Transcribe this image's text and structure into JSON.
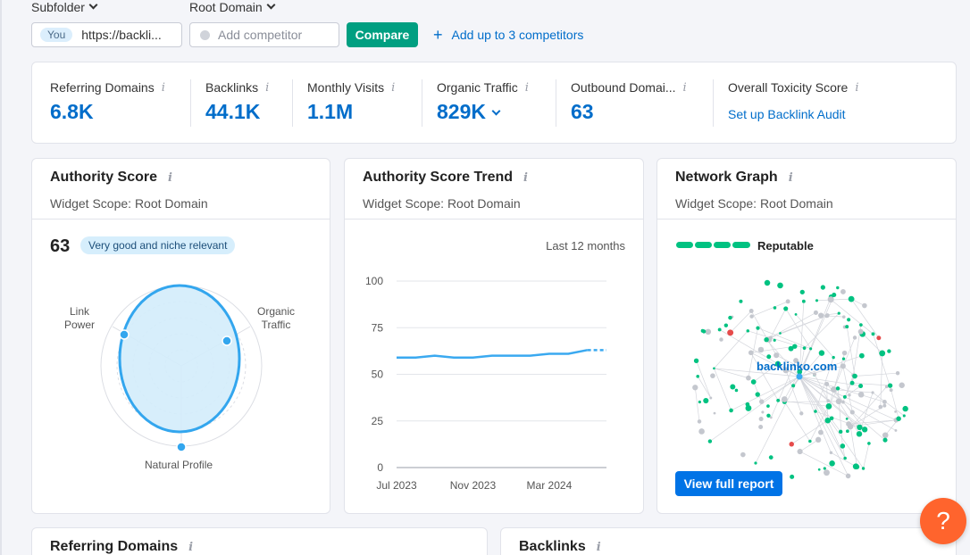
{
  "filters": {
    "subfolder_label": "Subfolder",
    "root_domain_label": "Root Domain",
    "you_badge": "You",
    "url_value": "https://backli...",
    "competitor_placeholder": "Add competitor",
    "compare_label": "Compare",
    "add_competitors_label": "Add up to 3 competitors"
  },
  "metrics": [
    {
      "label": "Referring Domains",
      "value": "6.8K"
    },
    {
      "label": "Backlinks",
      "value": "44.1K"
    },
    {
      "label": "Monthly Visits",
      "value": "1.1M"
    },
    {
      "label": "Organic Traffic",
      "value": "829K"
    },
    {
      "label": "Outbound Domai...",
      "value": "63"
    },
    {
      "label": "Overall Toxicity Score",
      "link": "Set up Backlink Audit"
    }
  ],
  "authority_score": {
    "title": "Authority Score",
    "scope": "Widget Scope: Root Domain",
    "score": "63",
    "badge": "Very good and niche relevant",
    "axis_labels": {
      "link_power": [
        "Link",
        "Power"
      ],
      "organic_traffic": [
        "Organic",
        "Traffic"
      ],
      "natural_profile": "Natural Profile"
    }
  },
  "trend": {
    "title": "Authority Score Trend",
    "scope": "Widget Scope: Root Domain",
    "period": "Last 12 months"
  },
  "network": {
    "title": "Network Graph",
    "scope": "Widget Scope: Root Domain",
    "reputation": "Reputable",
    "center_label": "backlinko.com",
    "view_button": "View full report"
  },
  "bottom": {
    "referring_domains_title": "Referring Domains",
    "backlinks_title": "Backlinks"
  },
  "help": {
    "label": "?"
  },
  "colors": {
    "accent_blue": "#006dca",
    "compare_green": "#009f81",
    "chart_line": "#3aa9f0",
    "network_green": "#00c281",
    "help_orange": "#ff642d"
  },
  "chart_data": {
    "type": "line",
    "x": [
      "2023-07",
      "2023-08",
      "2023-09",
      "2023-10",
      "2023-11",
      "2023-12",
      "2024-01",
      "2024-02",
      "2024-03",
      "2024-04",
      "2024-05",
      "2024-06"
    ],
    "series": [
      {
        "values": [
          59,
          59,
          60,
          59,
          59,
          60,
          60,
          60,
          61,
          61,
          63,
          63
        ]
      }
    ],
    "xticks": [
      "Jul 2023",
      "Nov 2023",
      "Mar 2024"
    ],
    "yticks": [
      0,
      25,
      50,
      75,
      100
    ],
    "ylim": [
      0,
      100
    ],
    "grid": true,
    "last_segment_dashed": true
  }
}
